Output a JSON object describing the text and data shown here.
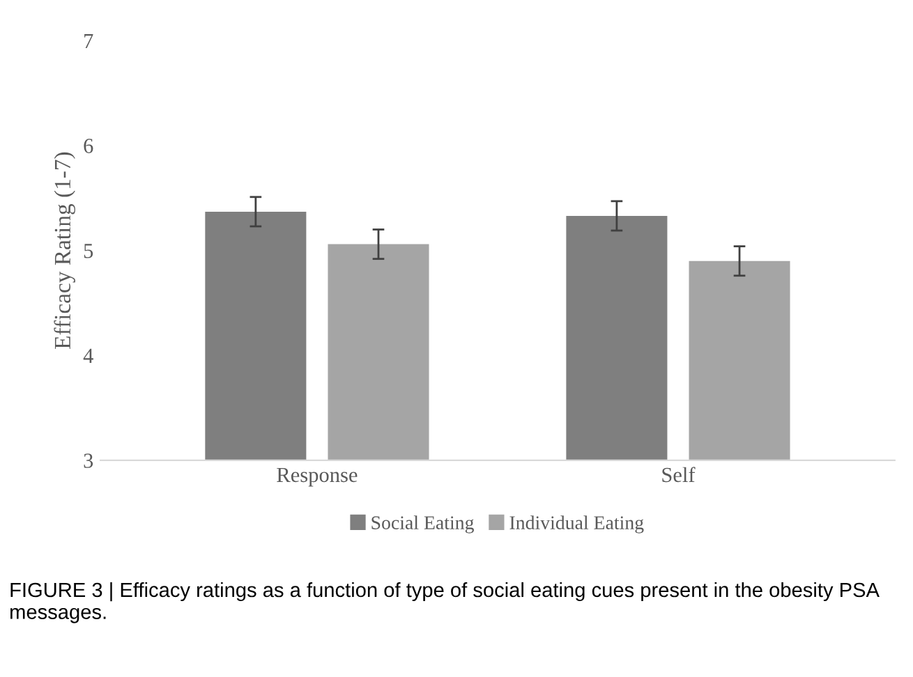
{
  "chart_data": {
    "type": "bar",
    "ylabel": "Efficacy Rating (1-7)",
    "categories": [
      "Response",
      "Self"
    ],
    "series": [
      {
        "name": "Social Eating",
        "color": "#7f7f7f",
        "values": [
          5.37,
          5.33
        ],
        "errors": [
          0.14,
          0.14
        ]
      },
      {
        "name": "Individual Eating",
        "color": "#a5a5a5",
        "values": [
          5.06,
          4.9
        ],
        "errors": [
          0.14,
          0.14
        ]
      }
    ],
    "ylim": [
      3,
      7
    ],
    "yticks": [
      3,
      4,
      5,
      6,
      7
    ],
    "grid": false,
    "legend": "bottom",
    "annotations": [
      "FIGURE 3 | Efficacy ratings as a function of type of social eating cues present in the obesity PSA messages."
    ]
  }
}
